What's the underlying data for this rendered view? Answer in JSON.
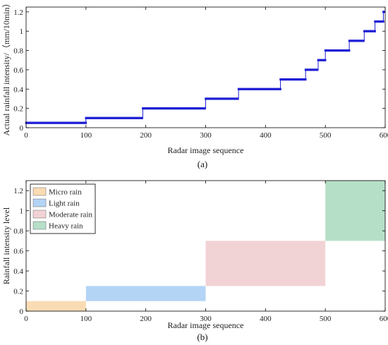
{
  "chart_data": [
    {
      "type": "line",
      "caption": "(a)",
      "xlabel": "Radar image sequence",
      "ylabel": "Actual rainfall intensity/（mm/10min）",
      "xlim": [
        0,
        600
      ],
      "ylim": [
        0,
        1.25
      ],
      "xticks": [
        "0",
        "100",
        "200",
        "300",
        "400",
        "500",
        "600"
      ],
      "yticks": [
        "0",
        "0.2",
        "0.4",
        "0.6",
        "0.8",
        "1",
        "1.2"
      ],
      "series_color": "#1f1fd6",
      "steps": [
        {
          "x_start": 0,
          "x_end": 100,
          "y": 0.05
        },
        {
          "x_start": 100,
          "x_end": 195,
          "y": 0.1
        },
        {
          "x_start": 195,
          "x_end": 300,
          "y": 0.2
        },
        {
          "x_start": 300,
          "x_end": 355,
          "y": 0.3
        },
        {
          "x_start": 355,
          "x_end": 425,
          "y": 0.4
        },
        {
          "x_start": 425,
          "x_end": 467,
          "y": 0.5
        },
        {
          "x_start": 467,
          "x_end": 488,
          "y": 0.6
        },
        {
          "x_start": 488,
          "x_end": 500,
          "y": 0.7
        },
        {
          "x_start": 500,
          "x_end": 540,
          "y": 0.8
        },
        {
          "x_start": 540,
          "x_end": 565,
          "y": 0.9
        },
        {
          "x_start": 565,
          "x_end": 583,
          "y": 1.0
        },
        {
          "x_start": 583,
          "x_end": 597,
          "y": 1.1
        },
        {
          "x_start": 597,
          "x_end": 600,
          "y": 1.2
        }
      ]
    },
    {
      "type": "area",
      "caption": "(b)",
      "xlabel": "Radar image sequence",
      "ylabel": "Rainfall intensity level",
      "xlim": [
        0,
        600
      ],
      "ylim": [
        0,
        1.3
      ],
      "xticks": [
        "0",
        "100",
        "200",
        "300",
        "400",
        "500",
        "600"
      ],
      "yticks": [
        "0",
        "0.2",
        "0.4",
        "0.6",
        "0.8",
        "1",
        "1.2"
      ],
      "legend_position": "top-left",
      "regions": [
        {
          "name": "Micro rain",
          "x_start": 0,
          "x_end": 100,
          "y_start": 0,
          "y_end": 0.1,
          "color": "#fadcb4"
        },
        {
          "name": "Light rain",
          "x_start": 100,
          "x_end": 300,
          "y_start": 0.1,
          "y_end": 0.25,
          "color": "#b4d4f5"
        },
        {
          "name": "Moderate rain",
          "x_start": 300,
          "x_end": 500,
          "y_start": 0.25,
          "y_end": 0.7,
          "color": "#f2d3d5"
        },
        {
          "name": "Heavy rain",
          "x_start": 500,
          "x_end": 600,
          "y_start": 0.7,
          "y_end": 1.3,
          "color": "#b6dfc8"
        }
      ]
    }
  ]
}
